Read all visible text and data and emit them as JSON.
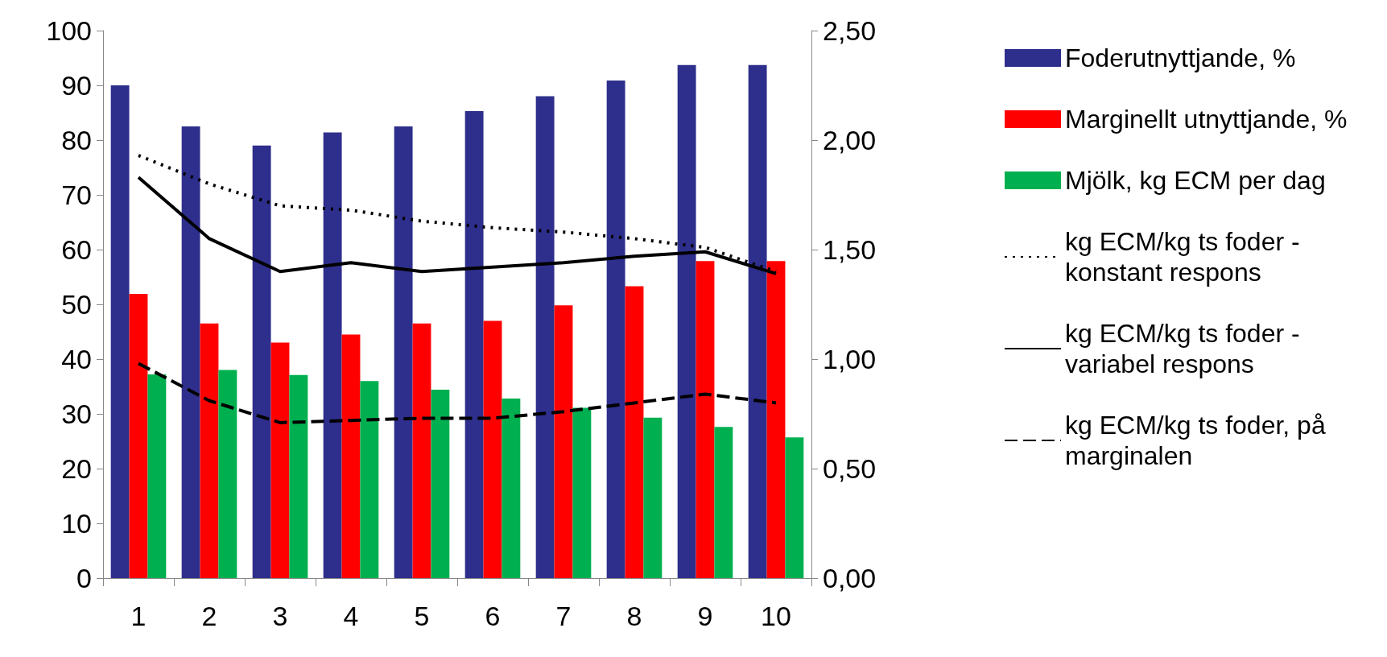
{
  "chart_data": {
    "type": "bar",
    "categories": [
      "1",
      "2",
      "3",
      "4",
      "5",
      "6",
      "7",
      "8",
      "9",
      "10"
    ],
    "series": [
      {
        "name": "Foderutnyttjande, %",
        "color": "#2e2e8c",
        "values": [
          90,
          82.5,
          79,
          81.4,
          82.5,
          85.3,
          88,
          90.9,
          93.7,
          93.7
        ]
      },
      {
        "name": "Marginellt utnyttjande, %",
        "color": "#ff0000",
        "values": [
          51.9,
          46.5,
          43,
          44.5,
          46.5,
          47,
          49.8,
          53.3,
          57.9,
          57.9
        ]
      },
      {
        "name": "Mjölk, kg ECM per dag",
        "color": "#00b050",
        "values": [
          37.2,
          38,
          37.1,
          36,
          34.4,
          32.8,
          31.1,
          29.3,
          27.6,
          25.7
        ]
      },
      {
        "name": "kg ECM/kg ts foder - konstant respons",
        "type": "line",
        "axis": "y2",
        "line_style": "dotted",
        "color": "#000000",
        "values": [
          1.93,
          1.8,
          1.7,
          1.68,
          1.63,
          1.6,
          1.58,
          1.55,
          1.51,
          1.4
        ]
      },
      {
        "name": "kg ECM/kg ts foder - variabel respons",
        "type": "line",
        "axis": "y2",
        "line_style": "solid",
        "color": "#000000",
        "values": [
          1.83,
          1.55,
          1.4,
          1.44,
          1.4,
          1.42,
          1.44,
          1.47,
          1.49,
          1.39
        ]
      },
      {
        "name": "kg ECM/kg ts foder, på marginalen",
        "type": "line",
        "axis": "y2",
        "line_style": "dashed",
        "color": "#000000",
        "values": [
          0.98,
          0.81,
          0.71,
          0.72,
          0.73,
          0.73,
          0.76,
          0.8,
          0.84,
          0.8
        ]
      }
    ],
    "ylim": [
      0,
      100
    ],
    "yticks": [
      0,
      10,
      20,
      30,
      40,
      50,
      60,
      70,
      80,
      90,
      100
    ],
    "y2lim": [
      0,
      2.5
    ],
    "y2ticks": [
      {
        "value": 0,
        "label": "0,00"
      },
      {
        "value": 0.5,
        "label": "0,50"
      },
      {
        "value": 1,
        "label": "1,00"
      },
      {
        "value": 1.5,
        "label": "1,50"
      },
      {
        "value": 2,
        "label": "2,00"
      },
      {
        "value": 2.5,
        "label": "2,50"
      }
    ],
    "grid": false,
    "legend": "right",
    "marker": "none"
  }
}
